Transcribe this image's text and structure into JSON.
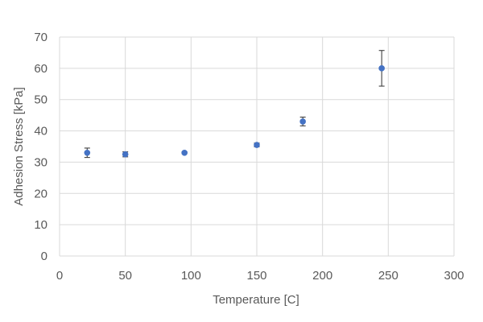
{
  "chart_data": {
    "type": "scatter",
    "title": "",
    "xlabel": "Temperature [C]",
    "ylabel": "Adhesion Stress [kPa]",
    "xlim": [
      0,
      300
    ],
    "ylim": [
      0,
      70
    ],
    "xticks": [
      0,
      50,
      100,
      150,
      200,
      250,
      300
    ],
    "yticks": [
      0,
      10,
      20,
      30,
      40,
      50,
      60,
      70
    ],
    "grid": true,
    "legend": "none",
    "series": [
      {
        "color": "#4472c4",
        "x": [
          21,
          50,
          95,
          150,
          185,
          245
        ],
        "y": [
          33.0,
          32.5,
          33.0,
          35.5,
          43.0,
          60.0
        ],
        "error": [
          1.5,
          0.8,
          0.3,
          0.6,
          1.4,
          5.7
        ]
      }
    ]
  }
}
